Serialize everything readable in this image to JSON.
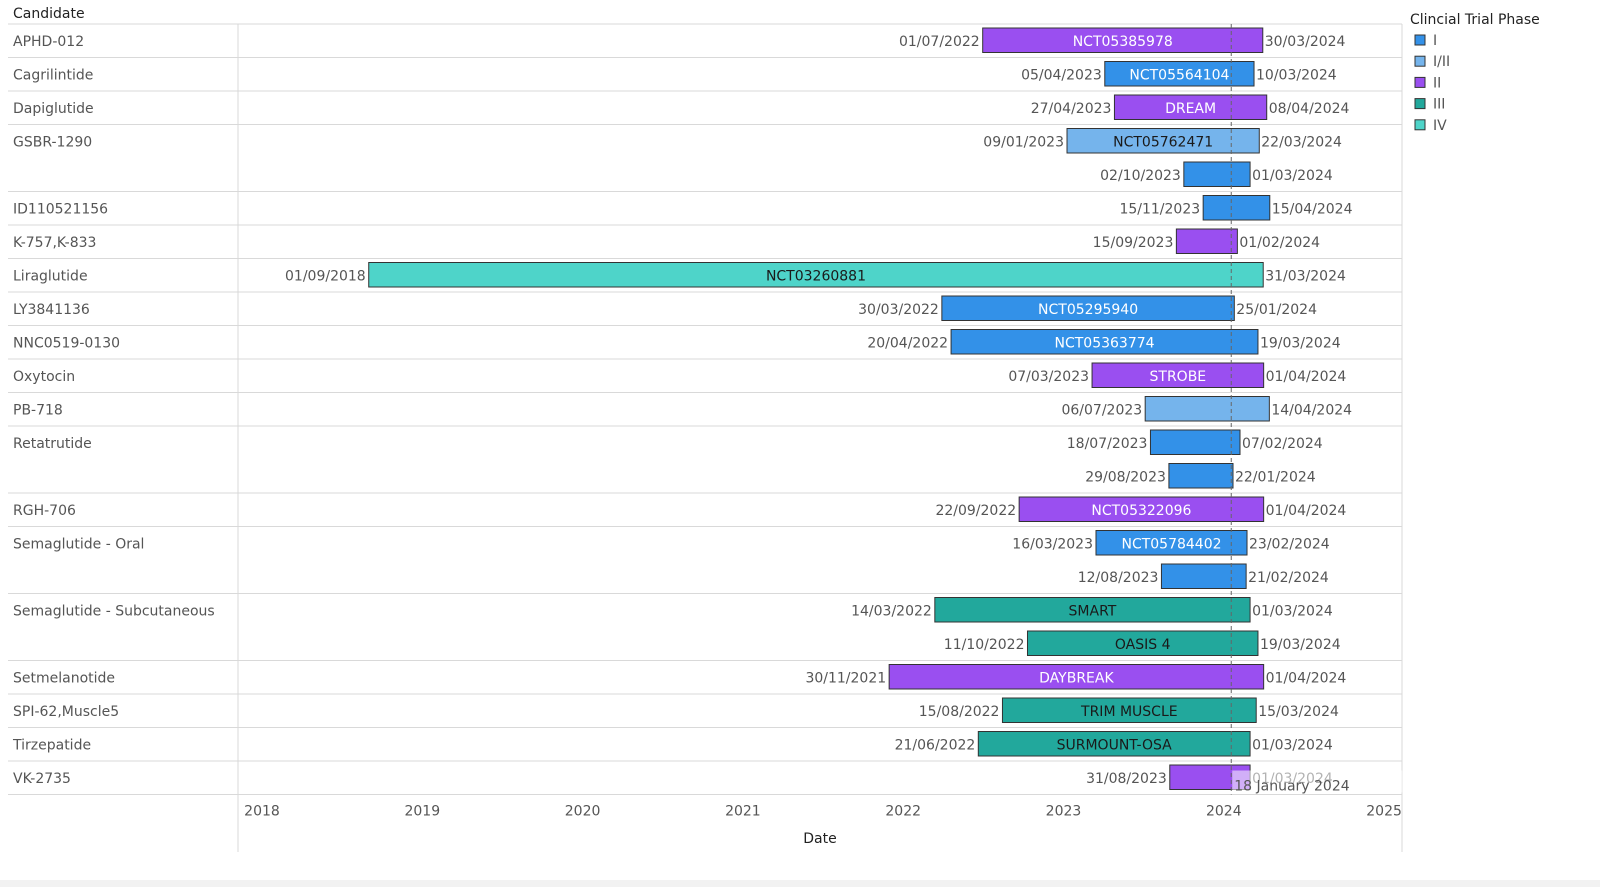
{
  "chart_data": {
    "type": "gantt",
    "row_header": "Candidate",
    "xlabel": "Date",
    "x_ticks": [
      "2018",
      "2019",
      "2020",
      "2021",
      "2022",
      "2023",
      "2024",
      "2025"
    ],
    "xlim": [
      "2017-10-08",
      "2025-02-10"
    ],
    "legend": {
      "title": "Clincial Trial Phase",
      "placement": "top-right",
      "items": [
        {
          "label": "I",
          "color": "#3391e8"
        },
        {
          "label": "I/II",
          "color": "#75b4ec"
        },
        {
          "label": "II",
          "color": "#9a4ff0"
        },
        {
          "label": "III",
          "color": "#22a89c"
        },
        {
          "label": "IV",
          "color": "#4ed4c9"
        }
      ]
    },
    "reference_line": {
      "date": "2024-01-18",
      "label": "18 January 2024"
    },
    "candidates": [
      {
        "name": "APHD-012",
        "trials": [
          {
            "start": "01/07/2022",
            "end": "30/03/2024",
            "phase": "II",
            "label": "NCT05385978"
          }
        ]
      },
      {
        "name": "Cagrilintide",
        "trials": [
          {
            "start": "05/04/2023",
            "end": "10/03/2024",
            "phase": "I",
            "label": "NCT05564104"
          }
        ]
      },
      {
        "name": "Dapiglutide",
        "trials": [
          {
            "start": "27/04/2023",
            "end": "08/04/2024",
            "phase": "II",
            "label": "DREAM"
          }
        ]
      },
      {
        "name": "GSBR-1290",
        "trials": [
          {
            "start": "09/01/2023",
            "end": "22/03/2024",
            "phase": "I/II",
            "label": "NCT05762471"
          },
          {
            "start": "02/10/2023",
            "end": "01/03/2024",
            "phase": "I",
            "label": ""
          }
        ]
      },
      {
        "name": "ID110521156",
        "trials": [
          {
            "start": "15/11/2023",
            "end": "15/04/2024",
            "phase": "I",
            "label": ""
          }
        ]
      },
      {
        "name": "K-757,K-833",
        "trials": [
          {
            "start": "15/09/2023",
            "end": "01/02/2024",
            "phase": "II",
            "label": ""
          }
        ]
      },
      {
        "name": "Liraglutide",
        "trials": [
          {
            "start": "01/09/2018",
            "end": "31/03/2024",
            "phase": "IV",
            "label": "NCT03260881"
          }
        ]
      },
      {
        "name": "LY3841136",
        "trials": [
          {
            "start": "30/03/2022",
            "end": "25/01/2024",
            "phase": "I",
            "label": "NCT05295940"
          }
        ]
      },
      {
        "name": "NNC0519-0130",
        "trials": [
          {
            "start": "20/04/2022",
            "end": "19/03/2024",
            "phase": "I",
            "label": "NCT05363774"
          }
        ]
      },
      {
        "name": "Oxytocin",
        "trials": [
          {
            "start": "07/03/2023",
            "end": "01/04/2024",
            "phase": "II",
            "label": "STROBE"
          }
        ]
      },
      {
        "name": "PB-718",
        "trials": [
          {
            "start": "06/07/2023",
            "end": "14/04/2024",
            "phase": "I/II",
            "label": ""
          }
        ]
      },
      {
        "name": "Retatrutide",
        "trials": [
          {
            "start": "18/07/2023",
            "end": "07/02/2024",
            "phase": "I",
            "label": ""
          },
          {
            "start": "29/08/2023",
            "end": "22/01/2024",
            "phase": "I",
            "label": ""
          }
        ]
      },
      {
        "name": "RGH-706",
        "trials": [
          {
            "start": "22/09/2022",
            "end": "01/04/2024",
            "phase": "II",
            "label": "NCT05322096"
          }
        ]
      },
      {
        "name": "Semaglutide - Oral",
        "trials": [
          {
            "start": "16/03/2023",
            "end": "23/02/2024",
            "phase": "I",
            "label": "NCT05784402"
          },
          {
            "start": "12/08/2023",
            "end": "21/02/2024",
            "phase": "I",
            "label": ""
          }
        ]
      },
      {
        "name": "Semaglutide - Subcutaneous",
        "trials": [
          {
            "start": "14/03/2022",
            "end": "01/03/2024",
            "phase": "III",
            "label": "SMART"
          },
          {
            "start": "11/10/2022",
            "end": "19/03/2024",
            "phase": "III",
            "label": "OASIS 4"
          }
        ]
      },
      {
        "name": "Setmelanotide",
        "trials": [
          {
            "start": "30/11/2021",
            "end": "01/04/2024",
            "phase": "II",
            "label": "DAYBREAK"
          }
        ]
      },
      {
        "name": "SPI-62,Muscle5",
        "trials": [
          {
            "start": "15/08/2022",
            "end": "15/03/2024",
            "phase": "III",
            "label": "TRIM MUSCLE"
          }
        ]
      },
      {
        "name": "Tirzepatide",
        "trials": [
          {
            "start": "21/06/2022",
            "end": "01/03/2024",
            "phase": "III",
            "label": "SURMOUNT-OSA"
          }
        ]
      },
      {
        "name": "VK-2735",
        "trials": [
          {
            "start": "31/08/2023",
            "end": "01/03/2024",
            "phase": "II",
            "label": ""
          }
        ]
      }
    ]
  }
}
